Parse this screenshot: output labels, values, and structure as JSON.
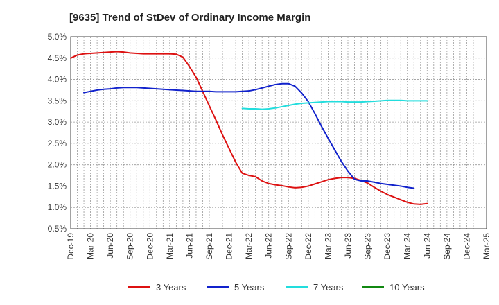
{
  "chart_data": {
    "type": "line",
    "title": "[9635]  Trend of StDev of Ordinary Income Margin",
    "xlabel": "",
    "ylabel": "",
    "ylim": [
      0.5,
      5.0
    ],
    "yticks": [
      0.5,
      1.0,
      1.5,
      2.0,
      2.5,
      3.0,
      3.5,
      4.0,
      4.5,
      5.0
    ],
    "ytick_labels": [
      "0.5%",
      "1.0%",
      "1.5%",
      "2.0%",
      "2.5%",
      "3.0%",
      "3.5%",
      "4.0%",
      "4.5%",
      "5.0%"
    ],
    "x_categories": [
      "Dec-19",
      "Mar-20",
      "Jun-20",
      "Sep-20",
      "Dec-20",
      "Mar-21",
      "Jun-21",
      "Sep-21",
      "Dec-21",
      "Mar-22",
      "Jun-22",
      "Sep-22",
      "Dec-22",
      "Mar-23",
      "Jun-23",
      "Sep-23",
      "Dec-23",
      "Mar-24",
      "Jun-24",
      "Sep-24",
      "Dec-24",
      "Mar-25"
    ],
    "grid": true,
    "legend_position": "bottom",
    "series": [
      {
        "name": "3 Years",
        "color": "#dd1111",
        "start_index": 0,
        "values": [
          4.5,
          4.57,
          4.6,
          4.61,
          4.62,
          4.63,
          4.64,
          4.65,
          4.64,
          4.62,
          4.61,
          4.6,
          4.6,
          4.6,
          4.6,
          4.6,
          4.59,
          4.52,
          4.3,
          4.05,
          3.72,
          3.38,
          3.05,
          2.7,
          2.38,
          2.06,
          1.8,
          1.75,
          1.72,
          1.62,
          1.56,
          1.53,
          1.51,
          1.48,
          1.46,
          1.47,
          1.5,
          1.55,
          1.6,
          1.65,
          1.68,
          1.7,
          1.7,
          1.68,
          1.63,
          1.57,
          1.47,
          1.38,
          1.3,
          1.24,
          1.18,
          1.12,
          1.08,
          1.07,
          1.09
        ]
      },
      {
        "name": "5 Years",
        "color": "#1122cc",
        "start_index": 2,
        "values": [
          3.69,
          3.72,
          3.75,
          3.77,
          3.78,
          3.8,
          3.81,
          3.81,
          3.81,
          3.8,
          3.79,
          3.78,
          3.77,
          3.76,
          3.75,
          3.74,
          3.73,
          3.72,
          3.72,
          3.72,
          3.71,
          3.71,
          3.71,
          3.71,
          3.72,
          3.73,
          3.76,
          3.8,
          3.84,
          3.88,
          3.9,
          3.9,
          3.84,
          3.68,
          3.48,
          3.2,
          2.9,
          2.62,
          2.35,
          2.08,
          1.85,
          1.66,
          1.62,
          1.62,
          1.59,
          1.56,
          1.54,
          1.52,
          1.5,
          1.47,
          1.45
        ]
      },
      {
        "name": "7 Years",
        "color": "#22dddd",
        "start_index": 26,
        "values": [
          3.32,
          3.31,
          3.31,
          3.3,
          3.31,
          3.33,
          3.36,
          3.39,
          3.42,
          3.44,
          3.45,
          3.46,
          3.47,
          3.48,
          3.48,
          3.48,
          3.47,
          3.47,
          3.47,
          3.48,
          3.49,
          3.5,
          3.51,
          3.51,
          3.51,
          3.5,
          3.5,
          3.5,
          3.5
        ]
      },
      {
        "name": "10 Years",
        "color": "#118811",
        "start_index": 0,
        "values": []
      }
    ]
  }
}
